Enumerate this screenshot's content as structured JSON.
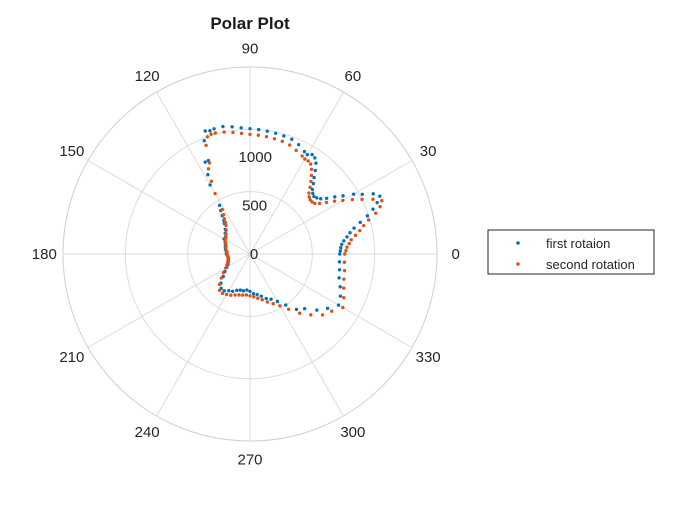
{
  "chart_data": {
    "type": "scatter",
    "polar": true,
    "title": "Polar Plot",
    "theta_ticks": [
      "0",
      "30",
      "60",
      "90",
      "120",
      "150",
      "180",
      "210",
      "240",
      "270",
      "300",
      "330"
    ],
    "r_ticks": [
      "0",
      "500",
      "1000"
    ],
    "rlim": [
      0,
      1500
    ],
    "grid": true,
    "legend_position": "right",
    "series": [
      {
        "name": "first rotaion",
        "color": "#0072BD",
        "theta_deg": [
          0,
          2,
          4,
          6,
          8,
          10,
          12,
          14,
          16,
          18,
          20,
          22,
          24,
          26,
          28,
          30,
          32,
          34,
          36,
          38,
          40,
          42,
          44,
          46,
          48,
          50,
          52,
          54,
          56,
          58,
          60,
          62,
          66,
          70,
          74,
          78,
          82,
          86,
          90,
          94,
          98,
          102,
          106,
          108,
          110,
          112,
          114,
          116,
          118,
          120,
          122,
          124,
          126,
          128,
          130,
          135,
          140,
          145,
          150,
          155,
          160,
          165,
          170,
          175,
          180,
          185,
          190,
          195,
          200,
          205,
          210,
          215,
          220,
          225,
          230,
          235,
          240,
          245,
          250,
          255,
          260,
          265,
          270,
          275,
          280,
          285,
          290,
          295,
          300,
          305,
          310,
          315,
          320,
          325,
          330,
          335,
          340,
          345,
          350,
          355
        ],
        "r": [
          720,
          725,
          730,
          740,
          760,
          790,
          820,
          860,
          920,
          990,
          1050,
          1100,
          1140,
          1100,
          1020,
          960,
          880,
          820,
          760,
          720,
          700,
          690,
          700,
          720,
          760,
          800,
          850,
          900,
          930,
          940,
          920,
          930,
          960,
          980,
          985,
          990,
          995,
          1000,
          1005,
          1015,
          1030,
          1045,
          1045,
          1040,
          1050,
          980,
          820,
          820,
          720,
          640,
          460,
          420,
          380,
          340,
          320,
          280,
          260,
          240,
          240,
          220,
          210,
          205,
          200,
          190,
          190,
          180,
          175,
          180,
          185,
          195,
          215,
          245,
          280,
          330,
          360,
          360,
          340,
          330,
          310,
          300,
          300,
          290,
          300,
          320,
          330,
          350,
          380,
          400,
          440,
          500,
          580,
          620,
          700,
          760,
          820,
          800,
          770,
          740,
          730,
          720
        ]
      },
      {
        "name": "second rotation",
        "color": "#D95319",
        "theta_deg": [
          0,
          2,
          4,
          6,
          8,
          10,
          12,
          14,
          16,
          18,
          20,
          22,
          24,
          26,
          28,
          30,
          32,
          34,
          36,
          38,
          40,
          42,
          44,
          46,
          48,
          50,
          52,
          54,
          56,
          58,
          60,
          62,
          66,
          70,
          74,
          78,
          82,
          86,
          90,
          94,
          98,
          102,
          106,
          108,
          110,
          112,
          114,
          116,
          118,
          120,
          122,
          124,
          126,
          128,
          130,
          135,
          140,
          145,
          150,
          155,
          160,
          165,
          170,
          175,
          180,
          185,
          190,
          195,
          200,
          205,
          210,
          215,
          220,
          225,
          230,
          235,
          240,
          245,
          250,
          255,
          260,
          265,
          270,
          275,
          280,
          285,
          290,
          295,
          300,
          305,
          310,
          315,
          320,
          325,
          330,
          335,
          340,
          345,
          350,
          355
        ],
        "r": [
          760,
          770,
          780,
          800,
          820,
          860,
          900,
          940,
          990,
          1060,
          1110,
          1140,
          1080,
          1000,
          930,
          860,
          800,
          740,
          690,
          660,
          650,
          650,
          660,
          680,
          720,
          760,
          800,
          840,
          870,
          880,
          880,
          890,
          910,
          930,
          940,
          945,
          950,
          955,
          960,
          970,
          985,
          1000,
          1010,
          1010,
          1000,
          940,
          800,
          760,
          660,
          560,
          420,
          380,
          350,
          320,
          300,
          270,
          250,
          235,
          230,
          215,
          205,
          200,
          195,
          185,
          185,
          180,
          178,
          182,
          190,
          205,
          225,
          260,
          300,
          345,
          380,
          385,
          375,
          365,
          350,
          340,
          335,
          330,
          335,
          345,
          360,
          380,
          410,
          440,
          480,
          540,
          620,
          690,
          760,
          800,
          860,
          830,
          800,
          780,
          770,
          760
        ]
      }
    ]
  }
}
